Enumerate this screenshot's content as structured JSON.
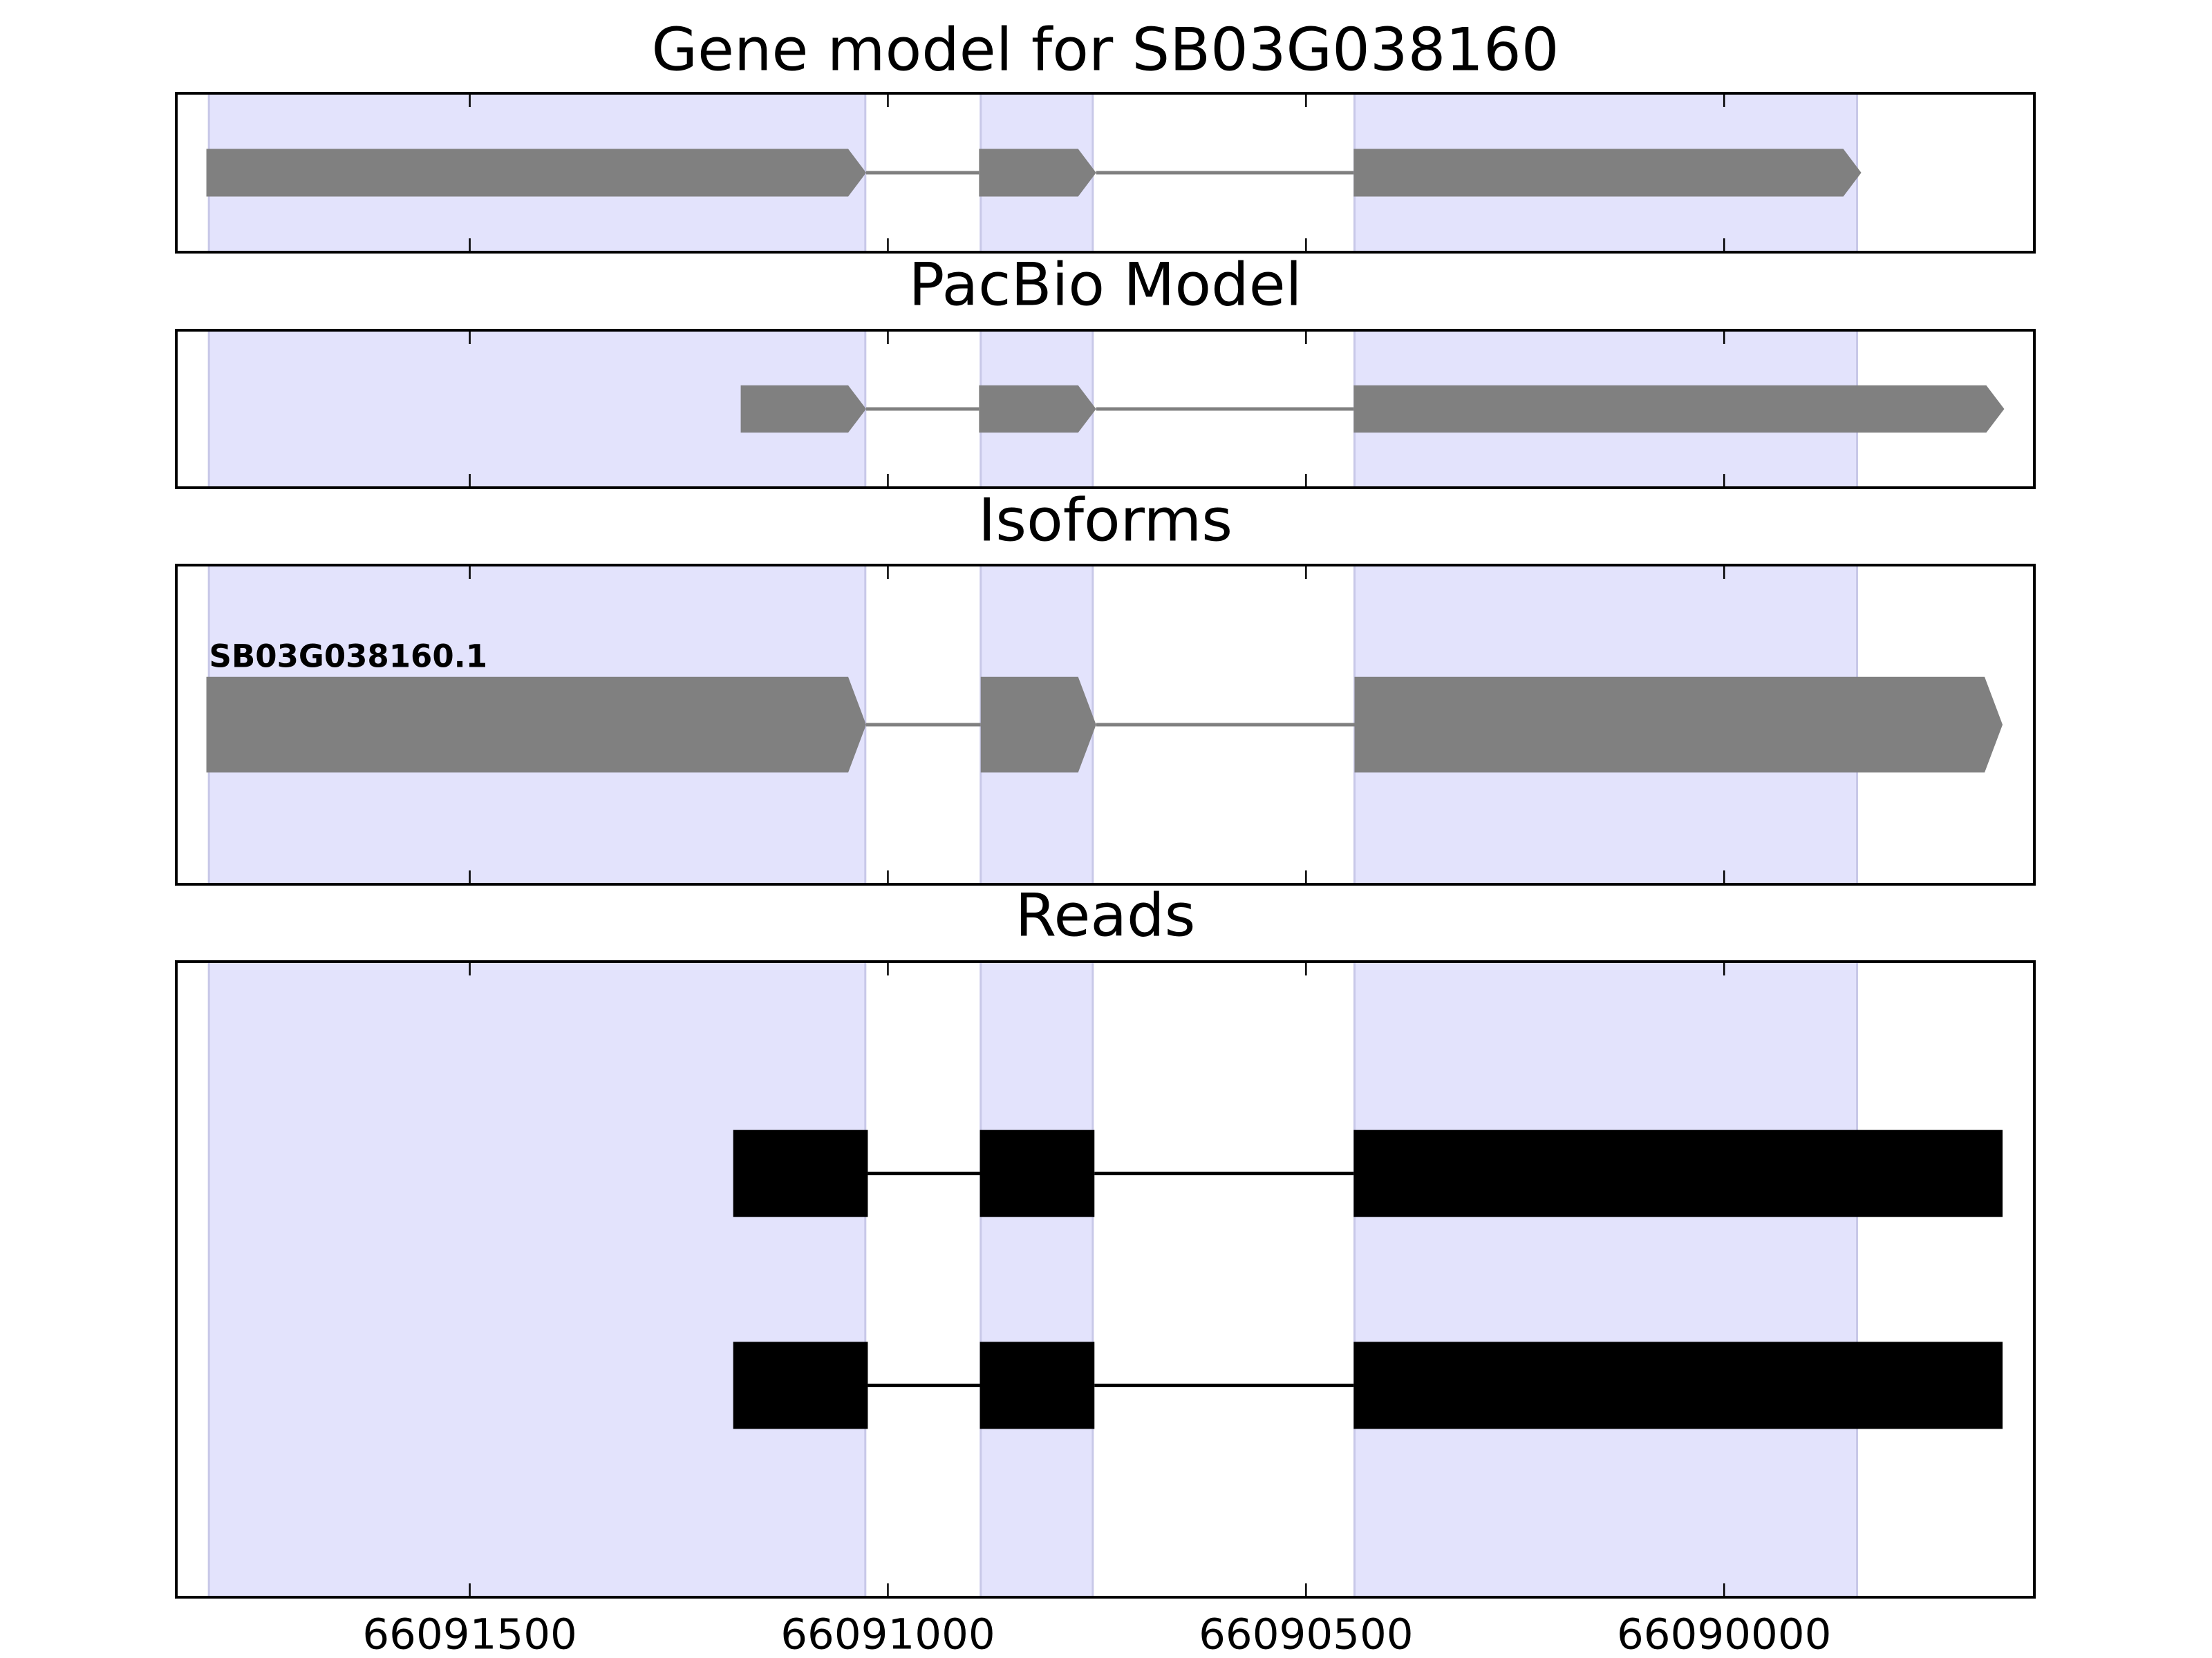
{
  "chart_data": [
    {
      "type": "gene-model",
      "title": "Gene model for SB03G038160",
      "color": "#808080",
      "exons": [
        [
          66091815,
          66091026
        ],
        [
          66090891,
          66090751
        ],
        [
          66090443,
          66089836
        ]
      ],
      "highlights": [
        [
          66091812,
          66091027
        ],
        [
          66090889,
          66090755
        ],
        [
          66090442,
          66089841
        ]
      ],
      "highlight_color": "#e3e3fc",
      "xlim": [
        66091851,
        66089629
      ],
      "xticks": [
        66091500,
        66091000,
        66090500,
        66090000
      ]
    },
    {
      "type": "gene-model",
      "title": "PacBio Model",
      "color": "#808080",
      "exons": [
        [
          66091176,
          66091026
        ],
        [
          66090891,
          66090751
        ],
        [
          66090443,
          66089665
        ]
      ],
      "highlights": [
        [
          66091812,
          66091027
        ],
        [
          66090889,
          66090755
        ],
        [
          66090442,
          66089841
        ]
      ],
      "highlight_color": "#e3e3fc",
      "xlim": [
        66091851,
        66089629
      ],
      "xticks": [
        66091500,
        66091000,
        66090500,
        66090000
      ]
    },
    {
      "type": "gene-model",
      "title": "Isoforms",
      "color": "#808080",
      "labels": [
        "SB03G038160.1"
      ],
      "exons": [
        [
          66091815,
          66091026
        ],
        [
          66090889,
          66090751
        ],
        [
          66090442,
          66089667
        ]
      ],
      "highlights": [
        [
          66091812,
          66091027
        ],
        [
          66090889,
          66090755
        ],
        [
          66090442,
          66089841
        ]
      ],
      "highlight_color": "#e3e3fc",
      "xlim": [
        66091851,
        66089629
      ],
      "xticks": [
        66091500,
        66091000,
        66090500,
        66090000
      ]
    },
    {
      "type": "reads",
      "title": "Reads",
      "color": "#000000",
      "series": [
        {
          "exons": [
            [
              66091185,
              66091024
            ],
            [
              66090890,
              66090753
            ],
            [
              66090443,
              66089667
            ]
          ]
        },
        {
          "exons": [
            [
              66091185,
              66091024
            ],
            [
              66090890,
              66090753
            ],
            [
              66090443,
              66089667
            ]
          ]
        }
      ],
      "highlights": [
        [
          66091812,
          66091027
        ],
        [
          66090889,
          66090755
        ],
        [
          66090442,
          66089841
        ]
      ],
      "highlight_color": "#e3e3fc",
      "xlim": [
        66091851,
        66089629
      ],
      "xticks": [
        66091500,
        66091000,
        66090500,
        66090000
      ]
    }
  ]
}
